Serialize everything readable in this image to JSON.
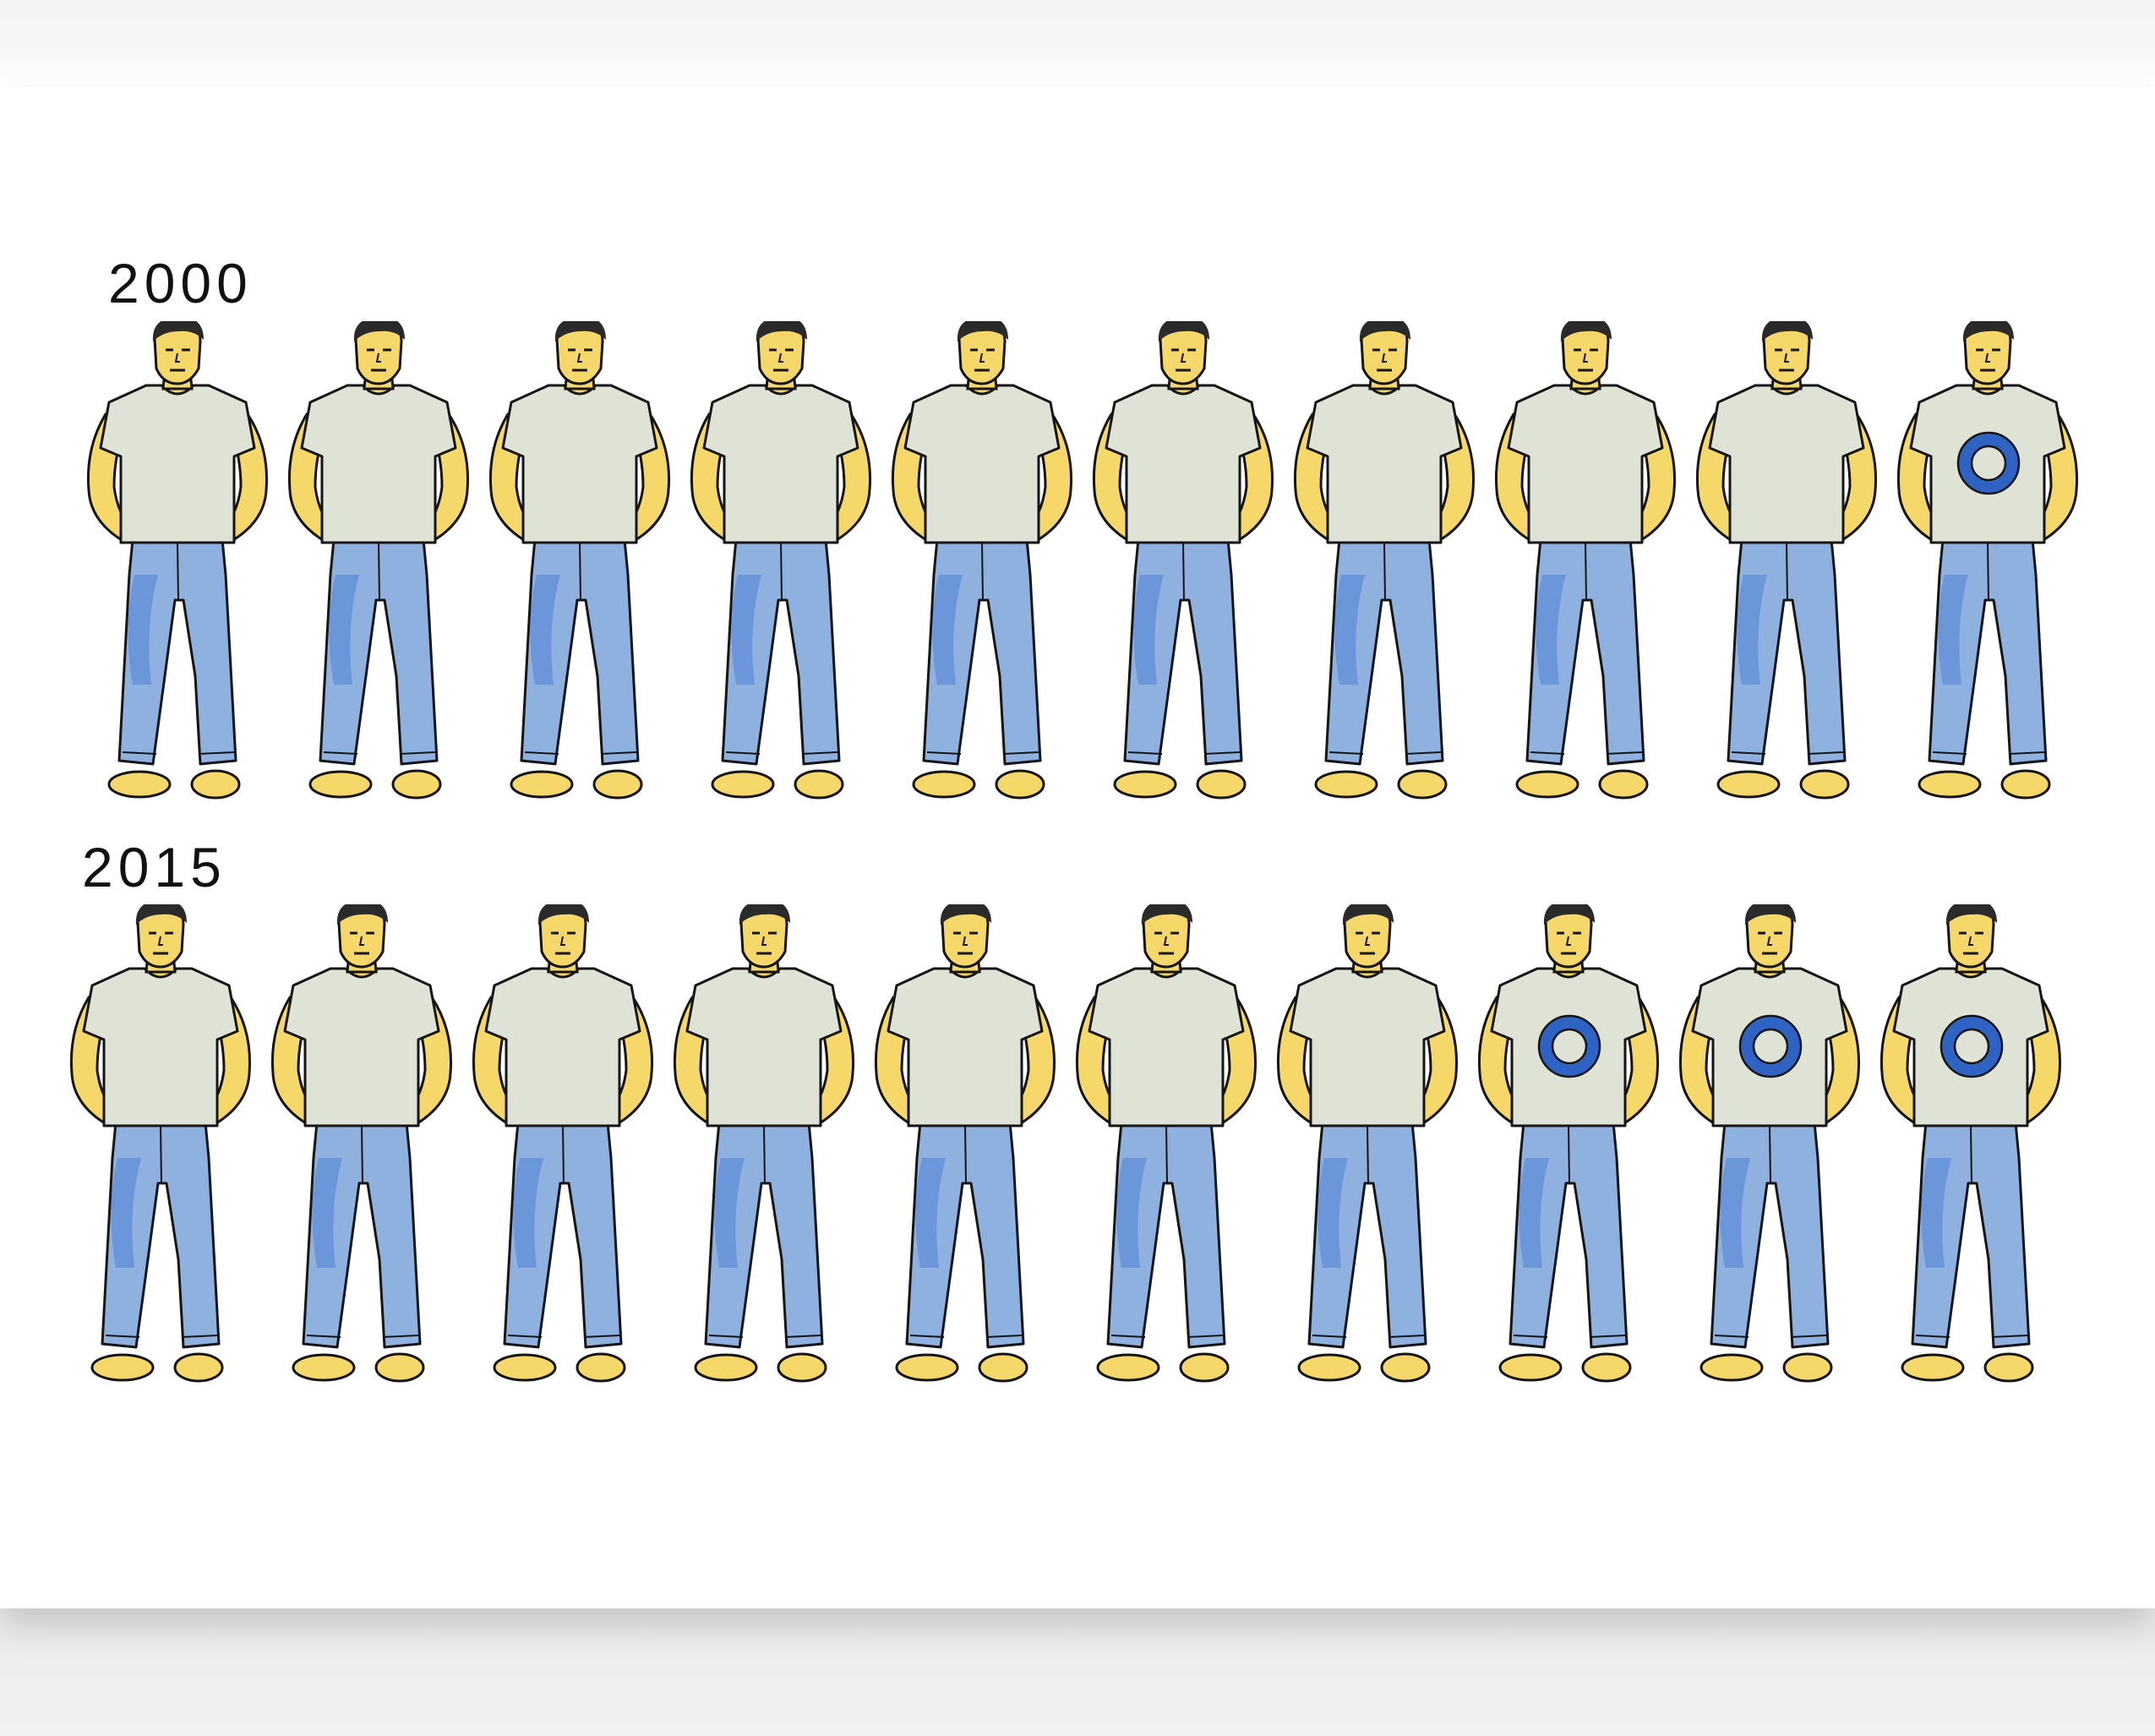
{
  "rows": [
    {
      "label": "2000",
      "figures": [
        {
          "marked": false
        },
        {
          "marked": false
        },
        {
          "marked": false
        },
        {
          "marked": false
        },
        {
          "marked": false
        },
        {
          "marked": false
        },
        {
          "marked": false
        },
        {
          "marked": false
        },
        {
          "marked": false
        },
        {
          "marked": true
        }
      ]
    },
    {
      "label": "2015",
      "figures": [
        {
          "marked": false
        },
        {
          "marked": false
        },
        {
          "marked": false
        },
        {
          "marked": false
        },
        {
          "marked": false
        },
        {
          "marked": false
        },
        {
          "marked": false
        },
        {
          "marked": true
        },
        {
          "marked": true
        },
        {
          "marked": true
        }
      ]
    }
  ],
  "colors": {
    "skin": "#f6d86a",
    "shirt": "#dfe3d6",
    "jeans": "#8fb1e0",
    "jeans_shadow": "#4f7fd3",
    "ring": "#2e63c4",
    "outline": "#151515"
  }
}
